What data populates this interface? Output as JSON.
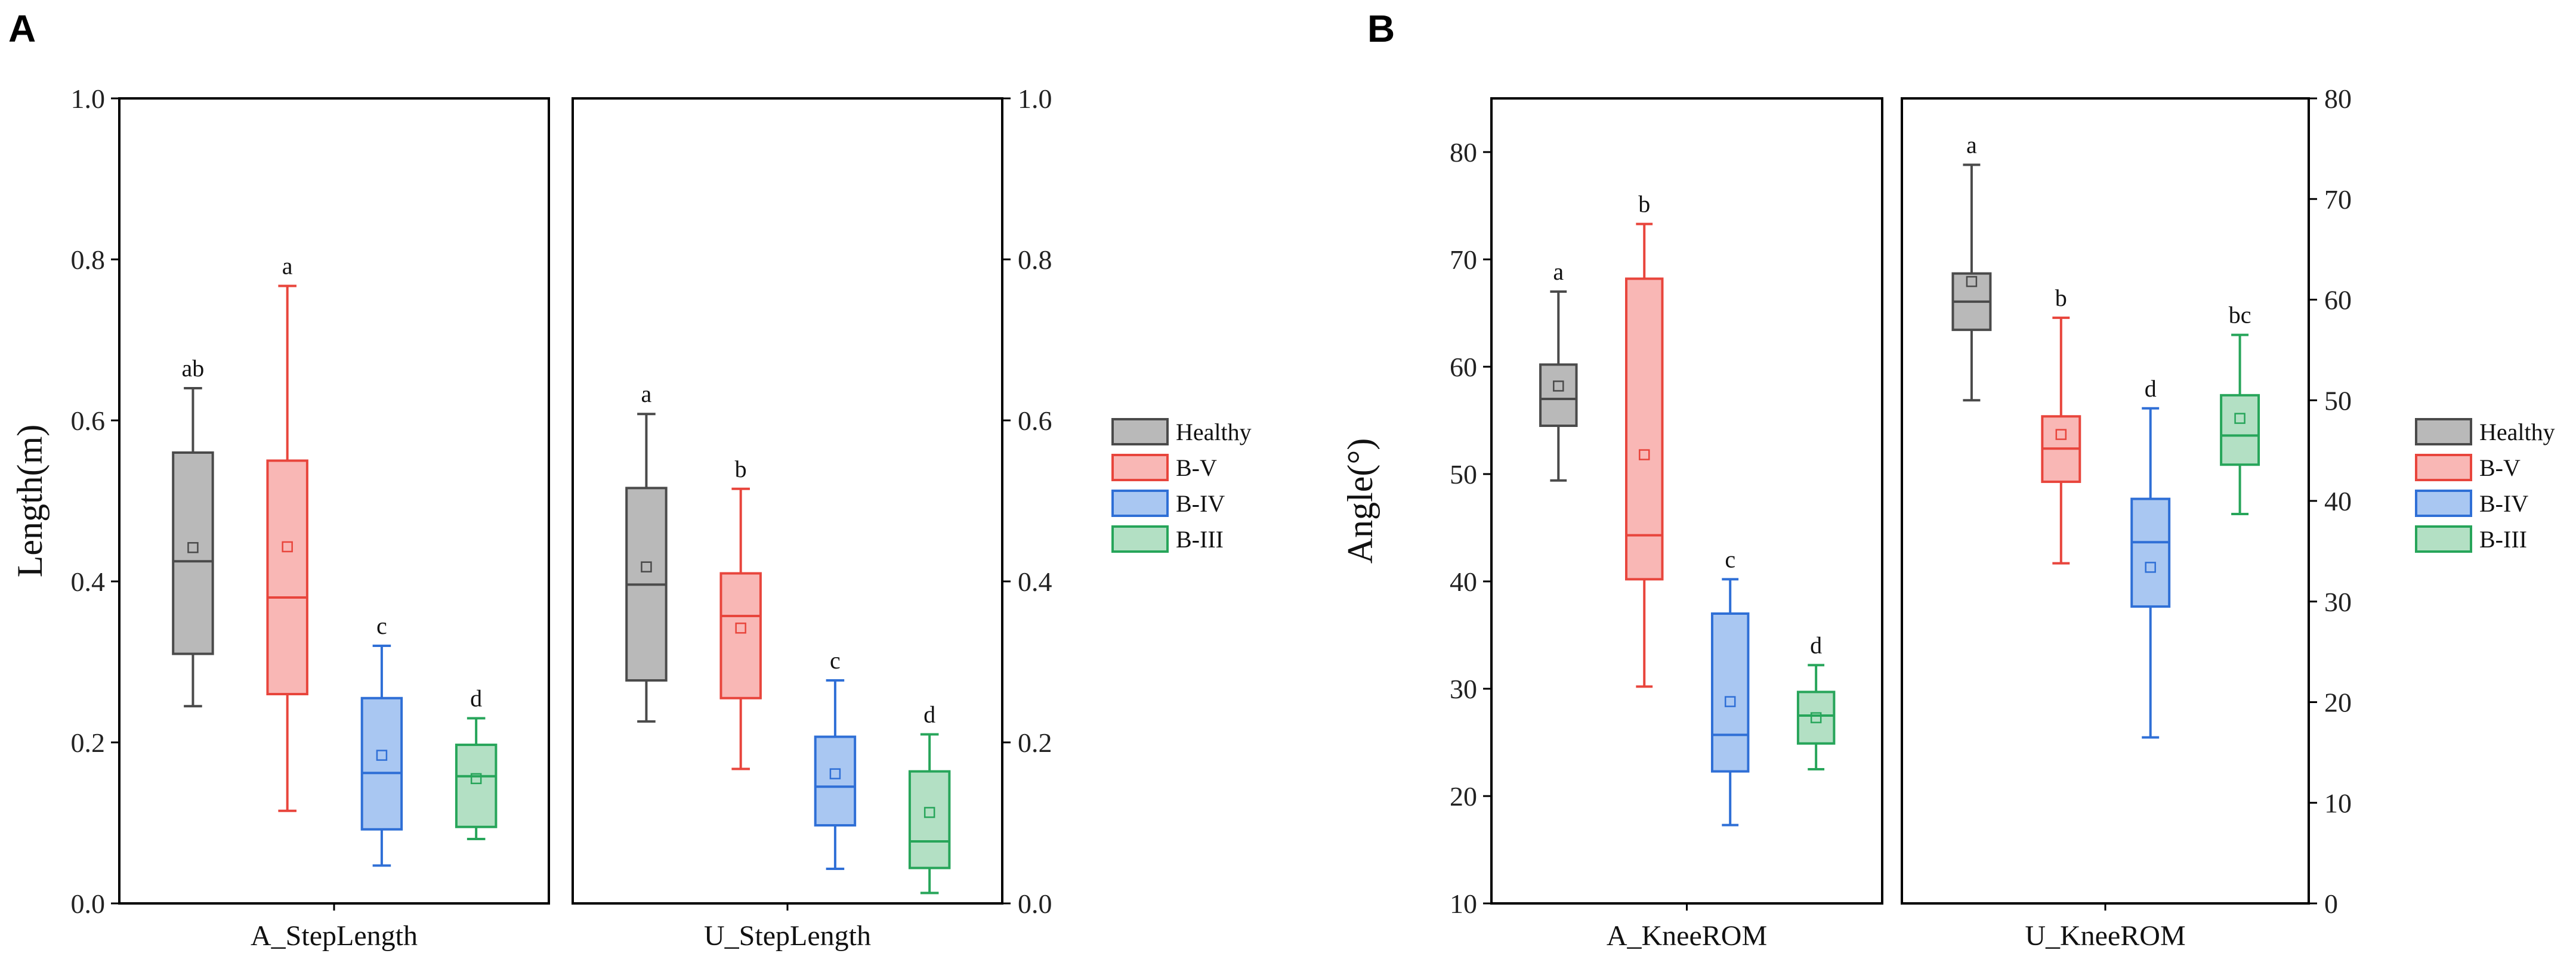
{
  "figure": {
    "panels": [
      "A",
      "B"
    ]
  },
  "colors": {
    "Healthy": {
      "stroke": "#4a4a4a",
      "fill": "#b9b9b9"
    },
    "B-V": {
      "stroke": "#e8453c",
      "fill": "#f9b7b5"
    },
    "B-IV": {
      "stroke": "#2f6fd6",
      "fill": "#a9c7f2"
    },
    "B-III": {
      "stroke": "#27a55a",
      "fill": "#b3e0c4"
    }
  },
  "chart_data": [
    {
      "type": "box",
      "panel": "A",
      "ylabel": "Length(m)",
      "left_axis": {
        "min": 0.0,
        "max": 1.0,
        "ticks": [
          "0.0",
          "0.2",
          "0.4",
          "0.6",
          "0.8",
          "1.0"
        ]
      },
      "right_axis": {
        "min": 0.0,
        "max": 1.0,
        "ticks": [
          "0.0",
          "0.2",
          "0.4",
          "0.6",
          "0.8",
          "1.0"
        ]
      },
      "legend": [
        "Healthy",
        "B-V",
        "B-IV",
        "B-III"
      ],
      "subplots": [
        {
          "xlabel": "A_StepLength",
          "axis": "left",
          "boxes": [
            {
              "group": "Healthy",
              "min": 0.245,
              "q1": 0.31,
              "median": 0.425,
              "q3": 0.56,
              "max": 0.64,
              "mean": 0.442,
              "letter": "ab"
            },
            {
              "group": "B-V",
              "min": 0.115,
              "q1": 0.26,
              "median": 0.38,
              "q3": 0.55,
              "max": 0.767,
              "mean": 0.443,
              "letter": "a"
            },
            {
              "group": "B-IV",
              "min": 0.047,
              "q1": 0.092,
              "median": 0.162,
              "q3": 0.255,
              "max": 0.32,
              "mean": 0.184,
              "letter": "c"
            },
            {
              "group": "B-III",
              "min": 0.08,
              "q1": 0.095,
              "median": 0.158,
              "q3": 0.197,
              "max": 0.23,
              "mean": 0.155,
              "letter": "d"
            }
          ]
        },
        {
          "xlabel": "U_StepLength",
          "axis": "right",
          "boxes": [
            {
              "group": "Healthy",
              "min": 0.226,
              "q1": 0.277,
              "median": 0.396,
              "q3": 0.516,
              "max": 0.608,
              "mean": 0.418,
              "letter": "a"
            },
            {
              "group": "B-V",
              "min": 0.167,
              "q1": 0.255,
              "median": 0.357,
              "q3": 0.41,
              "max": 0.515,
              "mean": 0.342,
              "letter": "b"
            },
            {
              "group": "B-IV",
              "min": 0.043,
              "q1": 0.097,
              "median": 0.145,
              "q3": 0.207,
              "max": 0.277,
              "mean": 0.161,
              "letter": "c"
            },
            {
              "group": "B-III",
              "min": 0.013,
              "q1": 0.044,
              "median": 0.077,
              "q3": 0.164,
              "max": 0.21,
              "mean": 0.113,
              "letter": "d"
            }
          ]
        }
      ]
    },
    {
      "type": "box",
      "panel": "B",
      "ylabel": "Angle(°)",
      "left_axis": {
        "min": 10,
        "max": 85,
        "ticks": [
          "10",
          "20",
          "30",
          "40",
          "50",
          "60",
          "70",
          "80"
        ]
      },
      "right_axis": {
        "min": 0,
        "max": 80,
        "ticks": [
          "0",
          "10",
          "20",
          "30",
          "40",
          "50",
          "60",
          "70",
          "80"
        ]
      },
      "legend": [
        "Healthy",
        "B-V",
        "B-IV",
        "B-III"
      ],
      "subplots": [
        {
          "xlabel": "A_KneeROM",
          "axis": "left",
          "boxes": [
            {
              "group": "Healthy",
              "min": 49.4,
              "q1": 54.5,
              "median": 57.0,
              "q3": 60.2,
              "max": 67.0,
              "mean": 58.2,
              "letter": "a"
            },
            {
              "group": "B-V",
              "min": 30.2,
              "q1": 40.2,
              "median": 44.3,
              "q3": 68.2,
              "max": 73.3,
              "mean": 51.8,
              "letter": "b"
            },
            {
              "group": "B-IV",
              "min": 17.3,
              "q1": 22.3,
              "median": 25.7,
              "q3": 37.0,
              "max": 40.2,
              "mean": 28.8,
              "letter": "c"
            },
            {
              "group": "B-III",
              "min": 22.5,
              "q1": 24.9,
              "median": 27.5,
              "q3": 29.7,
              "max": 32.2,
              "mean": 27.3,
              "letter": "d"
            }
          ]
        },
        {
          "xlabel": "U_KneeROM",
          "axis": "right",
          "boxes": [
            {
              "group": "Healthy",
              "min": 50.0,
              "q1": 57.0,
              "median": 59.8,
              "q3": 62.6,
              "max": 73.4,
              "mean": 61.8,
              "letter": "a"
            },
            {
              "group": "B-V",
              "min": 33.8,
              "q1": 41.9,
              "median": 45.2,
              "q3": 48.4,
              "max": 58.2,
              "mean": 46.6,
              "letter": "b"
            },
            {
              "group": "B-IV",
              "min": 16.5,
              "q1": 29.5,
              "median": 35.9,
              "q3": 40.2,
              "max": 49.2,
              "mean": 33.4,
              "letter": "d"
            },
            {
              "group": "B-III",
              "min": 38.7,
              "q1": 43.6,
              "median": 46.5,
              "q3": 50.5,
              "max": 56.5,
              "mean": 48.2,
              "letter": "bc"
            }
          ]
        }
      ]
    }
  ]
}
